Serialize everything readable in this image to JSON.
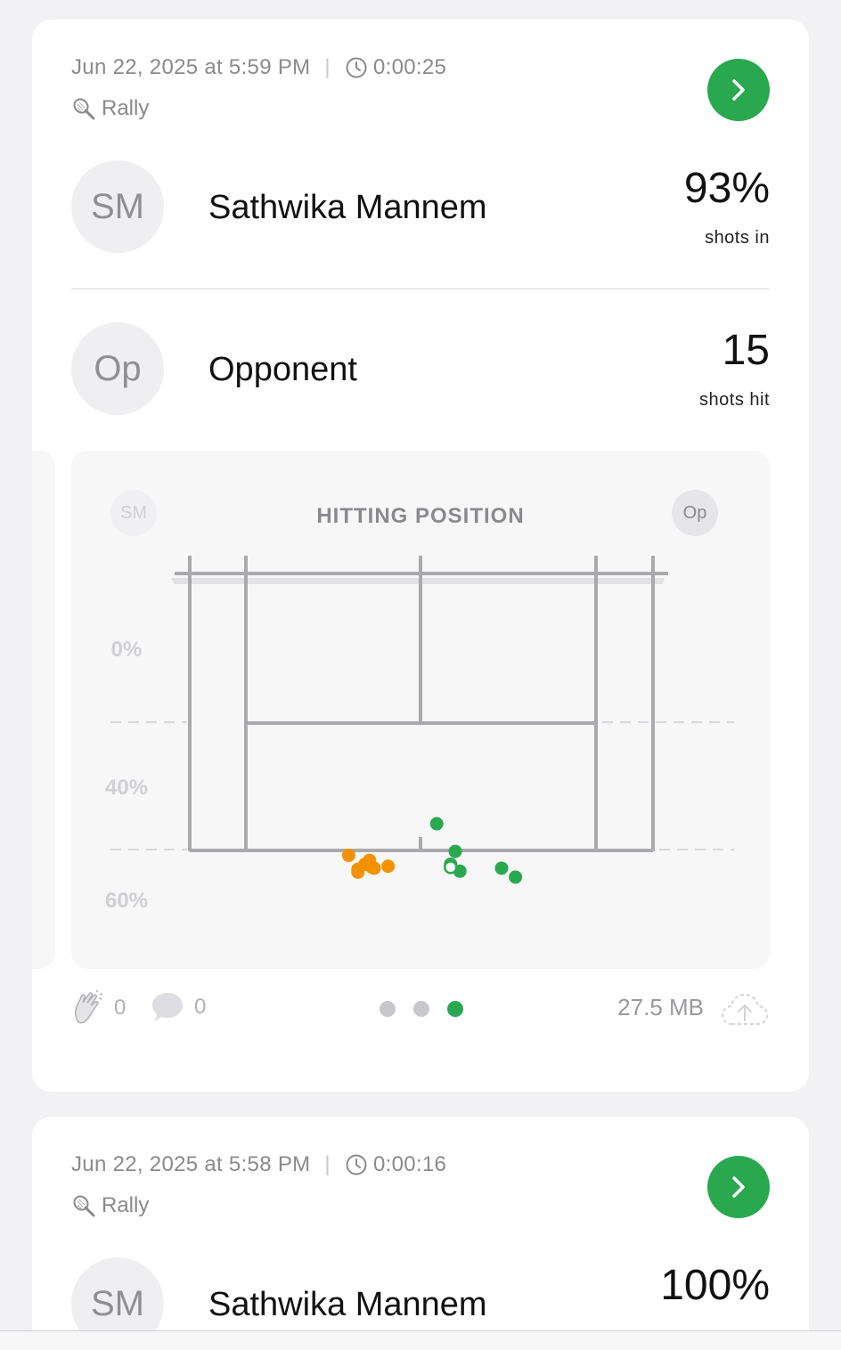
{
  "colors": {
    "accent_green": "#2aa850",
    "opponent_orange": "#f39200",
    "secondary_text": "#8a8a8e"
  },
  "sessions": [
    {
      "date": "Jun 22, 2025 at 5:59 PM",
      "duration": "0:00:25",
      "type": "Rally",
      "player": {
        "initials": "SM",
        "name": "Sathwika Mannem",
        "stat_value": "93%",
        "stat_label": "shots in"
      },
      "opponent": {
        "initials": "Op",
        "name": "Opponent",
        "stat_value": "15",
        "stat_label": "shots hit"
      },
      "chart": {
        "title": "HITTING POSITION",
        "left_avatar": "SM",
        "right_avatar": "Op",
        "zone_labels": [
          "0%",
          "40%",
          "60%"
        ]
      },
      "footer": {
        "claps": "0",
        "comments": "0",
        "page_index": 2,
        "page_count": 3,
        "size": "27.5 MB"
      }
    },
    {
      "date": "Jun 22, 2025 at 5:58 PM",
      "duration": "0:00:16",
      "type": "Rally",
      "player": {
        "initials": "SM",
        "name": "Sathwika Mannem",
        "stat_value": "100%"
      }
    }
  ],
  "chart_data": {
    "type": "scatter",
    "title": "HITTING POSITION",
    "y_tick_labels": [
      "0%",
      "40%",
      "60%"
    ],
    "series": [
      {
        "color": "#f39200",
        "points": [
          [
            -0.31,
            0.95
          ],
          [
            -0.22,
            0.9
          ],
          [
            -0.24,
            0.86
          ],
          [
            -0.27,
            0.81
          ],
          [
            -0.27,
            0.78
          ],
          [
            -0.2,
            0.82
          ],
          [
            -0.21,
            0.83
          ],
          [
            -0.14,
            0.84
          ]
        ]
      },
      {
        "color": "#2aa850",
        "points": [
          [
            0.07,
            1.27
          ],
          [
            0.15,
            0.99
          ],
          [
            0.13,
            0.86
          ],
          [
            0.13,
            0.84
          ],
          [
            0.17,
            0.79
          ],
          [
            0.41,
            0.73
          ],
          [
            0.35,
            0.82
          ]
        ]
      }
    ],
    "hollow_point": [
      0.13,
      0.83
    ]
  }
}
